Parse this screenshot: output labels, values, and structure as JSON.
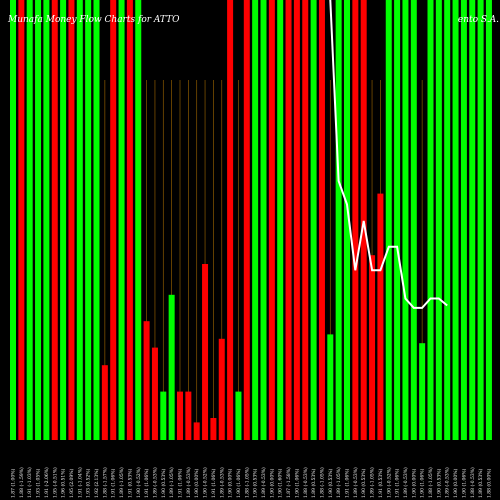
{
  "chart_data": {
    "type": "bar",
    "title": "MoneyFlow Charts for ATTO",
    "title_display": "Munafa Money Flow Charts for ATTO",
    "title_right": "ento  S.A.",
    "colors": {
      "up": "#00ff00",
      "down": "#ff0000",
      "line": "#ffffff",
      "grid": "#8b5a00",
      "background": "#000000"
    },
    "bar_scale": [
      0,
      100
    ],
    "categories": [
      "Wed 15 Jan 2025",
      "Tue 14 Jan 2025",
      "Mon 13 Jan 2025",
      "Fri 10 Jan 2025",
      "Thu 09 Jan 2025",
      "Wed 08 Jan 2025",
      "Tue 07 Jan 2025",
      "Mon 06 Jan 2025",
      "Fri 03 Jan 2025",
      "Thu 02 Jan 2025",
      "Tue 31 Dec 2024",
      "Mon 30 Dec 2024",
      "Fri 27 Dec 2024",
      "Thu 26 Dec 2024",
      "Tue 24 Dec 2024",
      "Mon 23 Dec 2024",
      "Fri 20 Dec 2024",
      "Thu 19 Dec 2024",
      "Wed 18 Dec 2024",
      "Tue 17 Dec 2024",
      "Mon 16 Dec 2024",
      "Fri 13 Dec 2024",
      "Thu 12 Dec 2024",
      "Wed 11 Dec 2024",
      "Tue 10 Dec 2024",
      "Mon 09 Dec 2024",
      "Fri 06 Dec 2024",
      "Thu 05 Dec 2024",
      "Wed 04 Dec 2024",
      "Tue 03 Dec 2024",
      "Mon 02 Dec 2024",
      "Fri 29 Nov 2024",
      "Thu 28 Nov 2024",
      "Wed 27 Nov 2024",
      "Tue 26 Nov 2024",
      "Mon 25 Nov 2024",
      "Fri 22 Nov 2024",
      "Thu 21 Nov 2024",
      "Wed 20 Nov 2024",
      "Tue 19 Nov 2024",
      "Mon 18 Nov 2024",
      "Fri 15 Nov 2024",
      "Thu 14 Nov 2024",
      "Wed 13 Nov 2024",
      "Tue 12 Nov 2024",
      "Mon 11 Nov 2024",
      "Fri 08 Nov 2024",
      "Thu 07 Nov 2024",
      "Wed 06 Nov 2024",
      "Tue 05 Nov 2024",
      "Mon 04 Nov 2024",
      "Fri 01 Nov 2024",
      "Thu 31 Oct 2024",
      "Wed 30 Oct 2024",
      "Tue 29 Oct 2024",
      "Mon 28 Oct 2024",
      "Fri 25 Oct 2024",
      "Thu 24 Oct 2024"
    ],
    "xtick_labels": [
      "1.87 (1.00%)",
      "1.88 (-1.59%)",
      "1.91 (-1.03%)",
      "1.93 (1.05%)",
      "1.91 (-2.06%)",
      "1.95 (-0.51%)",
      "1.96 (0.51%)",
      "1.95 (2.09%)",
      "1.91 (-1.04%)",
      "1.93 (0.52%)",
      "1.92 (2.13%)",
      "1.88 (-1.57%)",
      "1.91 (1.06%)",
      "1.89 (-1.05%)",
      "1.91 (0.53%)",
      "1.90 (-0.52%)",
      "1.91 (1.06%)",
      "1.89 (-0.53%)",
      "1.90 (0.53%)",
      "1.89 (-1.05%)",
      "1.91 (1.06%)",
      "1.89 (-0.53%)",
      "1.90 (0.00%)",
      "1.90 (-0.52%)",
      "1.91 (1.06%)",
      "1.89 (-0.53%)",
      "1.90 (0.00%)",
      "1.90 (1.06%)",
      "1.88 (-1.05%)",
      "1.90 (0.53%)",
      "1.89 (-0.53%)",
      "1.90 (0.00%)",
      "1.90 (1.60%)",
      "1.87 (-1.58%)",
      "1.90 (1.06%)",
      "1.88 (-0.53%)",
      "1.89 (0.53%)",
      "1.88 (-1.05%)",
      "1.90 (0.53%)",
      "1.89 (-1.05%)",
      "1.91 (1.06%)",
      "1.89 (-0.53%)",
      "1.90 (0.53%)",
      "1.89 (-1.05%)",
      "1.91 (0.53%)",
      "1.90 (-0.52%)",
      "1.91 (1.06%)",
      "1.89 (-0.53%)",
      "1.90 (0.00%)",
      "1.90 (1.06%)",
      "1.88 (-1.05%)",
      "1.90 (0.53%)",
      "1.89 (-0.53%)",
      "1.90 (0.00%)",
      "1.90 (1.06%)",
      "1.88 (-0.53%)",
      "1.89 (0.53%)",
      "1.88 (0.00%)"
    ],
    "bars": [
      {
        "dir": "up",
        "value": 100
      },
      {
        "dir": "down",
        "value": 100
      },
      {
        "dir": "up",
        "value": 100
      },
      {
        "dir": "up",
        "value": 100
      },
      {
        "dir": "up",
        "value": 100
      },
      {
        "dir": "down",
        "value": 100
      },
      {
        "dir": "up",
        "value": 100
      },
      {
        "dir": "down",
        "value": 100
      },
      {
        "dir": "up",
        "value": 100
      },
      {
        "dir": "up",
        "value": 100
      },
      {
        "dir": "up",
        "value": 100
      },
      {
        "dir": "down",
        "value": 17
      },
      {
        "dir": "down",
        "value": 100
      },
      {
        "dir": "up",
        "value": 100
      },
      {
        "dir": "down",
        "value": 100
      },
      {
        "dir": "up",
        "value": 100
      },
      {
        "dir": "down",
        "value": 27
      },
      {
        "dir": "down",
        "value": 21
      },
      {
        "dir": "up",
        "value": 11
      },
      {
        "dir": "up",
        "value": 33
      },
      {
        "dir": "down",
        "value": 11
      },
      {
        "dir": "down",
        "value": 11
      },
      {
        "dir": "down",
        "value": 4
      },
      {
        "dir": "down",
        "value": 40
      },
      {
        "dir": "down",
        "value": 5
      },
      {
        "dir": "down",
        "value": 23
      },
      {
        "dir": "down",
        "value": 100
      },
      {
        "dir": "up",
        "value": 11
      },
      {
        "dir": "down",
        "value": 100
      },
      {
        "dir": "up",
        "value": 100
      },
      {
        "dir": "up",
        "value": 100
      },
      {
        "dir": "down",
        "value": 100
      },
      {
        "dir": "up",
        "value": 100
      },
      {
        "dir": "down",
        "value": 100
      },
      {
        "dir": "down",
        "value": 100
      },
      {
        "dir": "down",
        "value": 100
      },
      {
        "dir": "up",
        "value": 100
      },
      {
        "dir": "down",
        "value": 100
      },
      {
        "dir": "up",
        "value": 24
      },
      {
        "dir": "up",
        "value": 100
      },
      {
        "dir": "up",
        "value": 100
      },
      {
        "dir": "down",
        "value": 100
      },
      {
        "dir": "down",
        "value": 100
      },
      {
        "dir": "down",
        "value": 42
      },
      {
        "dir": "down",
        "value": 56
      },
      {
        "dir": "up",
        "value": 100
      },
      {
        "dir": "up",
        "value": 100
      },
      {
        "dir": "up",
        "value": 100
      },
      {
        "dir": "up",
        "value": 100
      },
      {
        "dir": "up",
        "value": 22
      },
      {
        "dir": "up",
        "value": 100
      },
      {
        "dir": "up",
        "value": 100
      },
      {
        "dir": "up",
        "value": 100
      },
      {
        "dir": "up",
        "value": 100
      },
      {
        "dir": "up",
        "value": 100
      },
      {
        "dir": "up",
        "value": 100
      },
      {
        "dir": "up",
        "value": 100
      },
      {
        "dir": "up",
        "value": 100
      }
    ],
    "price_line": {
      "from_index": 38,
      "ylim": [
        1.8,
        2.0
      ],
      "values": [
        2.0,
        1.923,
        1.913,
        1.885,
        1.906,
        1.885,
        1.885,
        1.895,
        1.895,
        1.873,
        1.869,
        1.869,
        1.873,
        1.873,
        1.87
      ]
    },
    "grid": "vertical"
  }
}
